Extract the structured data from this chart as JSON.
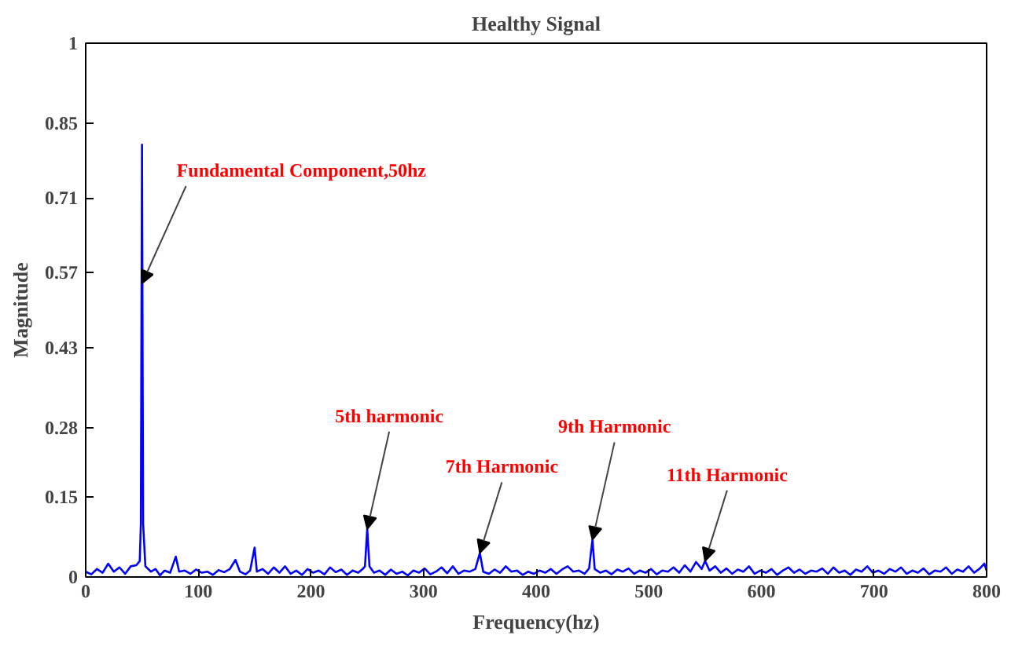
{
  "chart_data": {
    "type": "line",
    "title": "Healthy Signal",
    "xlabel": "Frequency(hz)",
    "ylabel": "Magnitude",
    "xlim": [
      0,
      800
    ],
    "xticks": [
      0,
      100,
      200,
      300,
      400,
      500,
      600,
      700,
      800
    ],
    "ylim": [
      0,
      1
    ],
    "yticks": [
      0,
      0.15,
      0.28,
      0.43,
      0.57,
      0.71,
      0.85,
      1
    ],
    "grid": false,
    "marker": "none",
    "line_style": "solid",
    "series": [
      {
        "color": "#0000ff",
        "x": [
          0,
          5,
          10,
          15,
          20,
          25,
          30,
          35,
          40,
          45,
          48,
          49,
          50,
          51,
          53,
          58,
          62,
          66,
          70,
          75,
          80,
          83,
          88,
          93,
          98,
          103,
          108,
          113,
          118,
          123,
          128,
          133,
          137,
          142,
          146,
          150,
          152,
          157,
          162,
          167,
          172,
          177,
          182,
          187,
          192,
          197,
          202,
          207,
          212,
          217,
          222,
          227,
          232,
          237,
          242,
          246,
          248,
          250,
          252,
          256,
          261,
          266,
          271,
          276,
          281,
          286,
          291,
          296,
          301,
          306,
          311,
          316,
          321,
          326,
          331,
          336,
          341,
          346,
          350,
          353,
          358,
          363,
          368,
          373,
          378,
          383,
          388,
          393,
          398,
          403,
          408,
          413,
          418,
          423,
          428,
          433,
          438,
          443,
          447,
          450,
          452,
          457,
          462,
          467,
          472,
          477,
          482,
          487,
          492,
          497,
          502,
          507,
          512,
          517,
          522,
          527,
          532,
          537,
          542,
          547,
          550,
          554,
          559,
          564,
          569,
          574,
          579,
          584,
          589,
          594,
          599,
          604,
          609,
          614,
          619,
          624,
          629,
          634,
          639,
          644,
          649,
          654,
          659,
          664,
          669,
          674,
          679,
          684,
          689,
          694,
          699,
          704,
          709,
          714,
          719,
          724,
          729,
          734,
          739,
          744,
          749,
          754,
          759,
          764,
          769,
          774,
          779,
          784,
          789,
          794,
          798,
          800
        ],
        "values": [
          0.01,
          0.005,
          0.015,
          0.008,
          0.025,
          0.01,
          0.018,
          0.006,
          0.02,
          0.022,
          0.03,
          0.1,
          0.81,
          0.1,
          0.02,
          0.01,
          0.015,
          0.003,
          0.012,
          0.008,
          0.038,
          0.01,
          0.012,
          0.006,
          0.014,
          0.008,
          0.01,
          0.004,
          0.013,
          0.009,
          0.015,
          0.032,
          0.01,
          0.005,
          0.012,
          0.055,
          0.01,
          0.015,
          0.006,
          0.018,
          0.008,
          0.02,
          0.006,
          0.012,
          0.004,
          0.015,
          0.008,
          0.012,
          0.005,
          0.018,
          0.009,
          0.014,
          0.004,
          0.012,
          0.008,
          0.015,
          0.02,
          0.09,
          0.02,
          0.008,
          0.012,
          0.004,
          0.014,
          0.006,
          0.01,
          0.003,
          0.012,
          0.008,
          0.016,
          0.005,
          0.01,
          0.018,
          0.007,
          0.02,
          0.006,
          0.012,
          0.01,
          0.015,
          0.045,
          0.01,
          0.006,
          0.014,
          0.008,
          0.02,
          0.01,
          0.012,
          0.004,
          0.01,
          0.006,
          0.012,
          0.008,
          0.015,
          0.006,
          0.014,
          0.02,
          0.01,
          0.012,
          0.006,
          0.016,
          0.07,
          0.015,
          0.008,
          0.012,
          0.005,
          0.014,
          0.01,
          0.016,
          0.006,
          0.012,
          0.008,
          0.015,
          0.005,
          0.012,
          0.01,
          0.018,
          0.008,
          0.022,
          0.01,
          0.028,
          0.015,
          0.03,
          0.012,
          0.02,
          0.008,
          0.016,
          0.006,
          0.014,
          0.01,
          0.02,
          0.006,
          0.012,
          0.008,
          0.015,
          0.004,
          0.012,
          0.018,
          0.008,
          0.014,
          0.006,
          0.012,
          0.01,
          0.016,
          0.006,
          0.018,
          0.008,
          0.012,
          0.004,
          0.014,
          0.01,
          0.02,
          0.008,
          0.012,
          0.006,
          0.015,
          0.01,
          0.018,
          0.006,
          0.012,
          0.008,
          0.016,
          0.005,
          0.012,
          0.01,
          0.018,
          0.006,
          0.014,
          0.01,
          0.02,
          0.008,
          0.016,
          0.025,
          0.012
        ]
      }
    ],
    "annotations": [
      {
        "text": "Fundamental Component,50hz",
        "x": 50,
        "y": 0.55
      },
      {
        "text": "5th harmonic",
        "x": 250,
        "y": 0.09
      },
      {
        "text": "7th Harmonic",
        "x": 350,
        "y": 0.045
      },
      {
        "text": "9th Harmonic",
        "x": 450,
        "y": 0.07
      },
      {
        "text": "11th Harmonic",
        "x": 550,
        "y": 0.03
      }
    ]
  }
}
